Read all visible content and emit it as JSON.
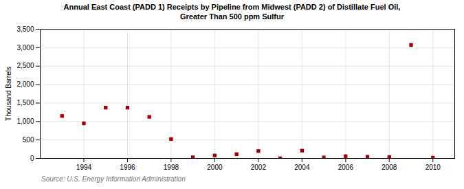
{
  "chart_data": {
    "type": "scatter",
    "title": "Annual East Coast (PADD 1) Receipts by Pipeline from Midwest (PADD 2) of Distillate Fuel Oil,\nGreater Than 500 ppm Sulfur",
    "ylabel": "Thousand Barrels",
    "source": "Source: U.S. Energy Information Administration",
    "x": [
      1993,
      1994,
      1995,
      1996,
      1997,
      1998,
      1999,
      2000,
      2001,
      2002,
      2003,
      2004,
      2005,
      2006,
      2007,
      2008,
      2009,
      2010
    ],
    "values": [
      1150,
      950,
      1375,
      1375,
      1125,
      525,
      30,
      80,
      115,
      200,
      5,
      210,
      25,
      60,
      45,
      35,
      3075,
      20
    ],
    "color": "#aa0000",
    "marker": "square",
    "xlim": [
      1992.0,
      2011.0
    ],
    "xticks": [
      1994,
      1996,
      1998,
      2000,
      2002,
      2004,
      2006,
      2008,
      2010
    ],
    "ylim": [
      0,
      3500
    ],
    "yticks": [
      0,
      500,
      {
        "value": 1000,
        "label": "1,000"
      },
      {
        "value": 1500,
        "label": "1,500"
      },
      {
        "value": 2000,
        "label": "2,000"
      },
      {
        "value": 2500,
        "label": "2,500"
      },
      {
        "value": 3000,
        "label": "3,000"
      },
      {
        "value": 3500,
        "label": "3,500"
      }
    ],
    "grid": true
  }
}
